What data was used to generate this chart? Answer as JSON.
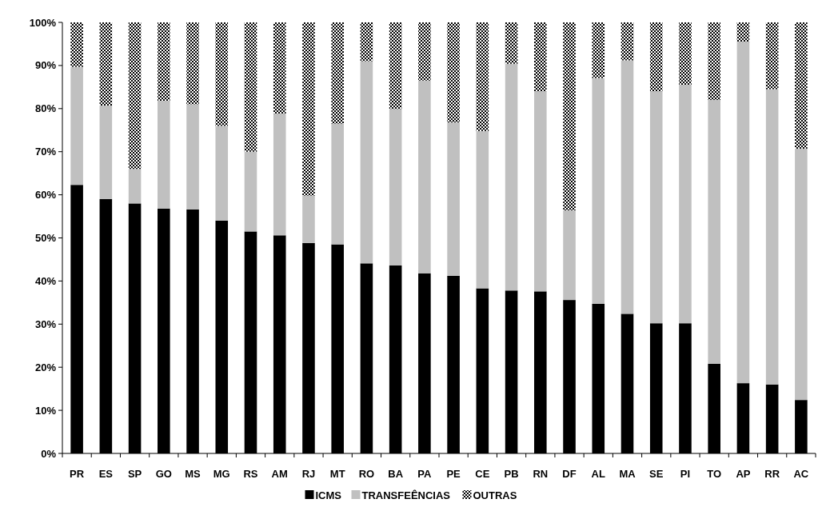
{
  "chart_data": {
    "type": "bar",
    "stacked": true,
    "categories": [
      "PR",
      "ES",
      "SP",
      "GO",
      "MS",
      "MG",
      "RS",
      "AM",
      "RJ",
      "MT",
      "RO",
      "BA",
      "PA",
      "PE",
      "CE",
      "PB",
      "RN",
      "DF",
      "AL",
      "MA",
      "SE",
      "PI",
      "TO",
      "AP",
      "RR",
      "AC"
    ],
    "series": [
      {
        "name": "ICMS",
        "color": "#000000",
        "values": [
          62.3,
          59,
          58,
          56.8,
          56.6,
          54,
          51.5,
          50.6,
          48.8,
          48.5,
          44.1,
          43.6,
          41.8,
          41.2,
          38.3,
          37.8,
          37.6,
          35.6,
          34.7,
          32.4,
          30.2,
          30.2,
          20.8,
          16.3,
          16,
          12.4
        ]
      },
      {
        "name": "TRANSFEÊNCIAS",
        "color": "#c0c0c0",
        "values": [
          27.4,
          21.7,
          8,
          25,
          24.4,
          22,
          18.5,
          28.2,
          11,
          28,
          46.9,
          36.3,
          44.7,
          35.6,
          36.5,
          52.6,
          46.4,
          20.8,
          52.4,
          58.8,
          53.8,
          55.3,
          61.2,
          79.2,
          68.5,
          58.3
        ]
      },
      {
        "name": "OUTRAS",
        "color": "#000000",
        "values": [
          10.3,
          19.3,
          34,
          18.2,
          19,
          24,
          30,
          21.2,
          40.2,
          23.5,
          9,
          20.1,
          13.5,
          23.2,
          25.2,
          9.6,
          16,
          43.6,
          12.9,
          8.8,
          16,
          14.5,
          18,
          4.5,
          15.5,
          29.3
        ]
      }
    ],
    "ylim": [
      0,
      100
    ],
    "yticks": [
      {
        "value": 0,
        "label": "0%"
      },
      {
        "value": 10,
        "label": "10%"
      },
      {
        "value": 20,
        "label": "20%"
      },
      {
        "value": 30,
        "label": "30%"
      },
      {
        "value": 40,
        "label": "40%"
      },
      {
        "value": 50,
        "label": "50%"
      },
      {
        "value": 60,
        "label": "60%"
      },
      {
        "value": 70,
        "label": "70%"
      },
      {
        "value": 80,
        "label": "80%"
      },
      {
        "value": 90,
        "label": "90%"
      },
      {
        "value": 100,
        "label": "100%"
      }
    ],
    "grid": false,
    "legend": "bottom"
  }
}
